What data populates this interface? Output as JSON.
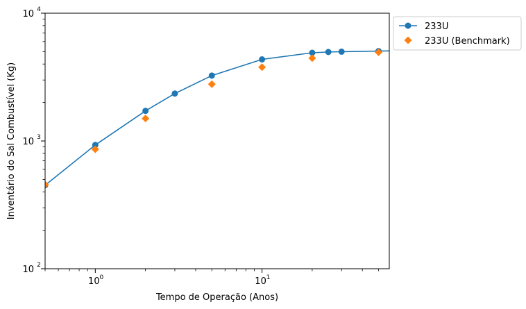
{
  "chart_data": {
    "type": "line",
    "title": "",
    "xlabel": "Tempo de Operação (Anos)",
    "ylabel": "Inventário do Sal Combustível (Kg)",
    "x_scale": "log",
    "y_scale": "log",
    "xlim": [
      0.5,
      58
    ],
    "ylim": [
      100,
      10000
    ],
    "x_ticks": [
      {
        "value": 1,
        "base": "10",
        "exp": "0"
      },
      {
        "value": 10,
        "base": "10",
        "exp": "1"
      }
    ],
    "y_ticks": [
      {
        "value": 100,
        "base": "10",
        "exp": "2"
      },
      {
        "value": 1000,
        "base": "10",
        "exp": "3"
      },
      {
        "value": 10000,
        "base": "10",
        "exp": "4"
      }
    ],
    "grid": false,
    "legend_position": "outside top-right",
    "series": [
      {
        "name": "233U",
        "color": "#1f77b4",
        "marker": "circle",
        "line": true,
        "x": [
          0.5,
          1,
          2,
          3,
          5,
          10,
          20,
          25,
          30,
          50,
          58
        ],
        "y": [
          450,
          930,
          1720,
          2350,
          3250,
          4350,
          4900,
          4970,
          5000,
          5050,
          5070
        ],
        "marker_x": [
          0.5,
          1,
          2,
          3,
          5,
          10,
          20,
          25,
          30,
          50
        ],
        "marker_y": [
          450,
          930,
          1720,
          2350,
          3250,
          4350,
          4900,
          4970,
          5000,
          5050
        ]
      },
      {
        "name": "233U (Benchmark)",
        "color": "#ff7f0e",
        "marker": "diamond",
        "line": false,
        "x": [
          0.5,
          1,
          2,
          5,
          10,
          20,
          50
        ],
        "y": [
          455,
          860,
          1500,
          2780,
          3780,
          4450,
          4950
        ]
      }
    ]
  }
}
